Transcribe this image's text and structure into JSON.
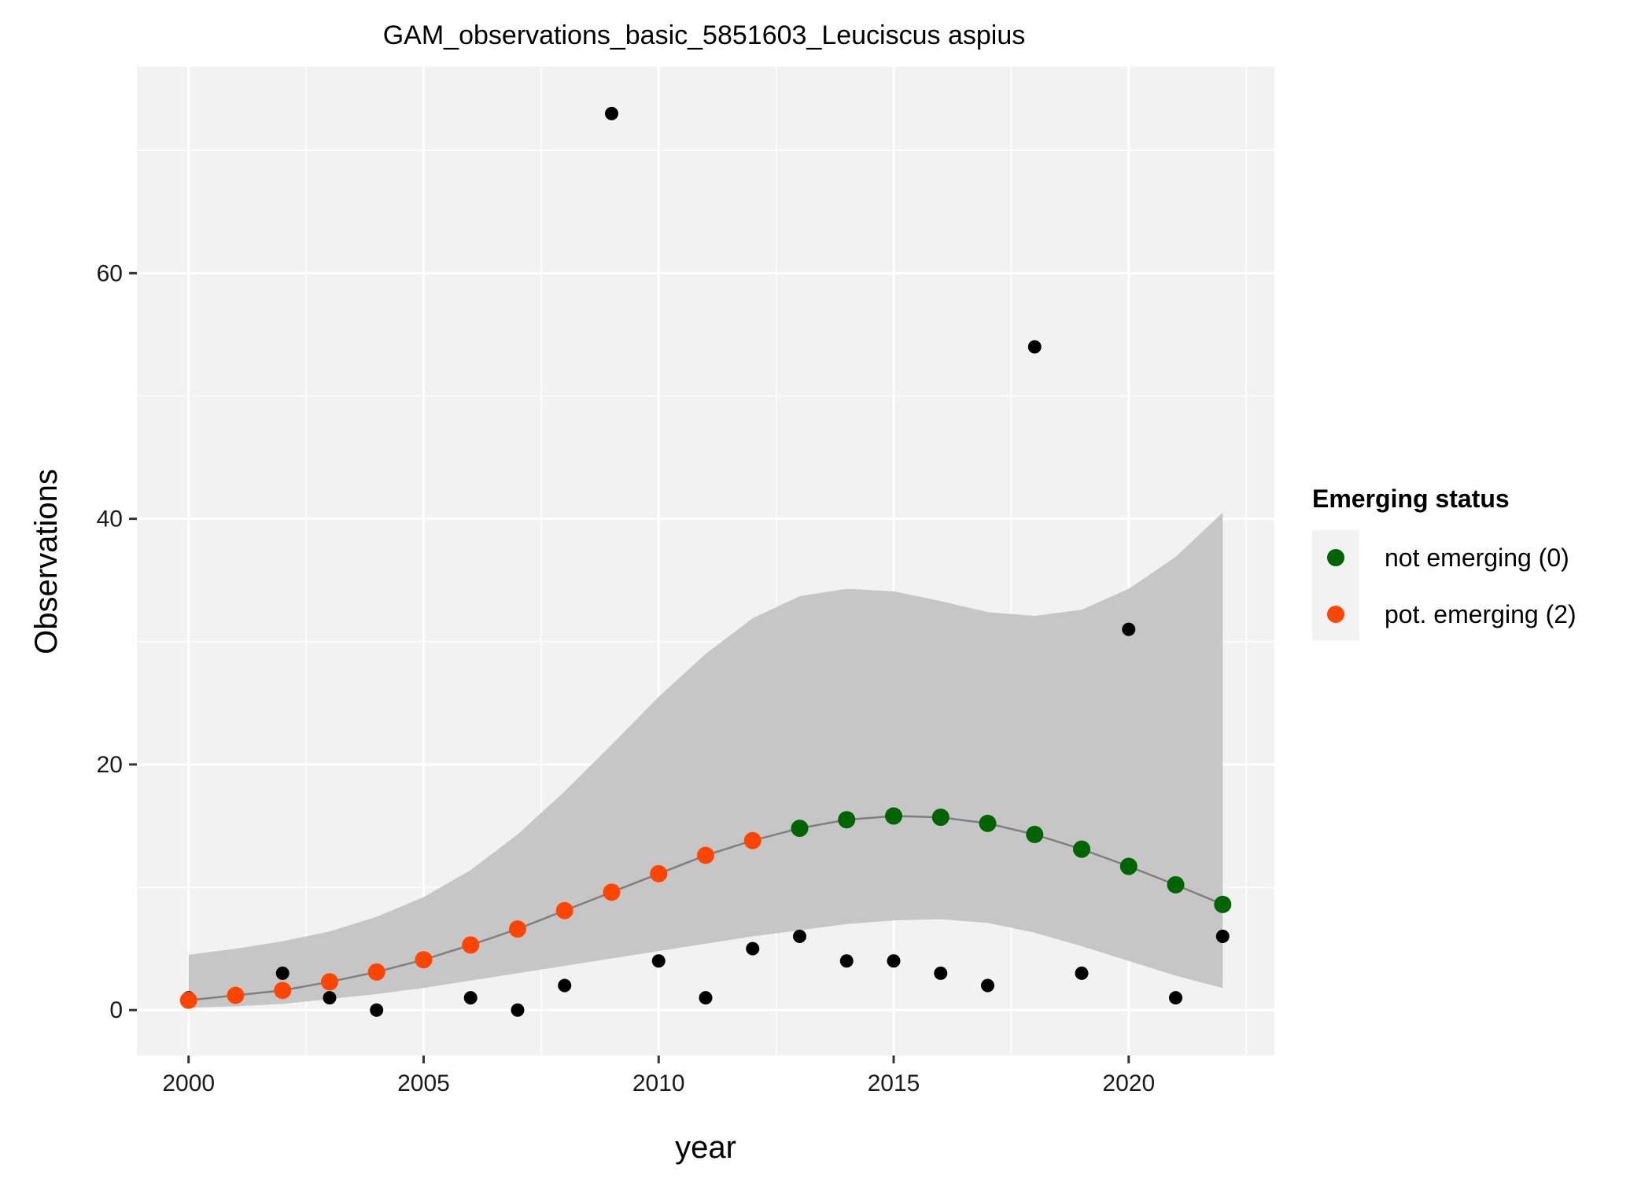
{
  "chart_data": {
    "type": "scatter",
    "title": "GAM_observations_basic_5851603_Leuciscus aspius",
    "xlabel": "year",
    "ylabel": "Observations",
    "xlim": [
      1998.9,
      2023.1
    ],
    "ylim": [
      -3.7,
      76.8
    ],
    "x_ticks": [
      2000,
      2005,
      2010,
      2015,
      2020
    ],
    "y_ticks": [
      0,
      20,
      40,
      60
    ],
    "grid": true,
    "legend": {
      "title": "Emerging status",
      "placement": "right",
      "entries": [
        {
          "label": "not emerging (0)",
          "color": "#006400"
        },
        {
          "label": "pot. emerging (2)",
          "color": "#ff4500"
        }
      ]
    },
    "colors": {
      "panel": "#f2f2f2",
      "band": "#c6c6c6",
      "fit_line": "#7f7f7f",
      "observed": "#000000",
      "not_emerging": "#006400",
      "pot_emerging": "#ff4500"
    },
    "observed": {
      "x": [
        2000,
        2002,
        2003,
        2004,
        2006,
        2007,
        2008,
        2009,
        2010,
        2011,
        2012,
        2013,
        2014,
        2015,
        2016,
        2017,
        2018,
        2019,
        2020,
        2021,
        2022
      ],
      "y": [
        1,
        3,
        1,
        0,
        1,
        0,
        2,
        73,
        4,
        1,
        5,
        6,
        4,
        4,
        3,
        2,
        54,
        3,
        31,
        1,
        6
      ]
    },
    "fitted": {
      "x": [
        2000,
        2001,
        2002,
        2003,
        2004,
        2005,
        2006,
        2007,
        2008,
        2009,
        2010,
        2011,
        2012,
        2013,
        2014,
        2015,
        2016,
        2017,
        2018,
        2019,
        2020,
        2021,
        2022
      ],
      "y": [
        0.8,
        1.2,
        1.6,
        2.3,
        3.1,
        4.1,
        5.3,
        6.6,
        8.1,
        9.6,
        11.1,
        12.6,
        13.8,
        14.8,
        15.5,
        15.8,
        15.7,
        15.2,
        14.3,
        13.1,
        11.7,
        10.2,
        8.6
      ],
      "status": [
        "pot. emerging (2)",
        "pot. emerging (2)",
        "pot. emerging (2)",
        "pot. emerging (2)",
        "pot. emerging (2)",
        "pot. emerging (2)",
        "pot. emerging (2)",
        "pot. emerging (2)",
        "pot. emerging (2)",
        "pot. emerging (2)",
        "pot. emerging (2)",
        "pot. emerging (2)",
        "pot. emerging (2)",
        "not emerging (0)",
        "not emerging (0)",
        "not emerging (0)",
        "not emerging (0)",
        "not emerging (0)",
        "not emerging (0)",
        "not emerging (0)",
        "not emerging (0)",
        "not emerging (0)",
        "not emerging (0)"
      ],
      "lower": [
        0.2,
        0.3,
        0.5,
        0.9,
        1.3,
        1.8,
        2.4,
        3.0,
        3.6,
        4.2,
        4.8,
        5.4,
        6.0,
        6.5,
        7.0,
        7.3,
        7.4,
        7.1,
        6.3,
        5.2,
        4.0,
        2.8,
        1.8
      ],
      "upper": [
        4.5,
        5.0,
        5.6,
        6.4,
        7.6,
        9.2,
        11.4,
        14.3,
        17.8,
        21.6,
        25.5,
        29.0,
        31.9,
        33.7,
        34.3,
        34.1,
        33.3,
        32.4,
        32.1,
        32.6,
        34.3,
        36.9,
        40.5
      ]
    }
  }
}
